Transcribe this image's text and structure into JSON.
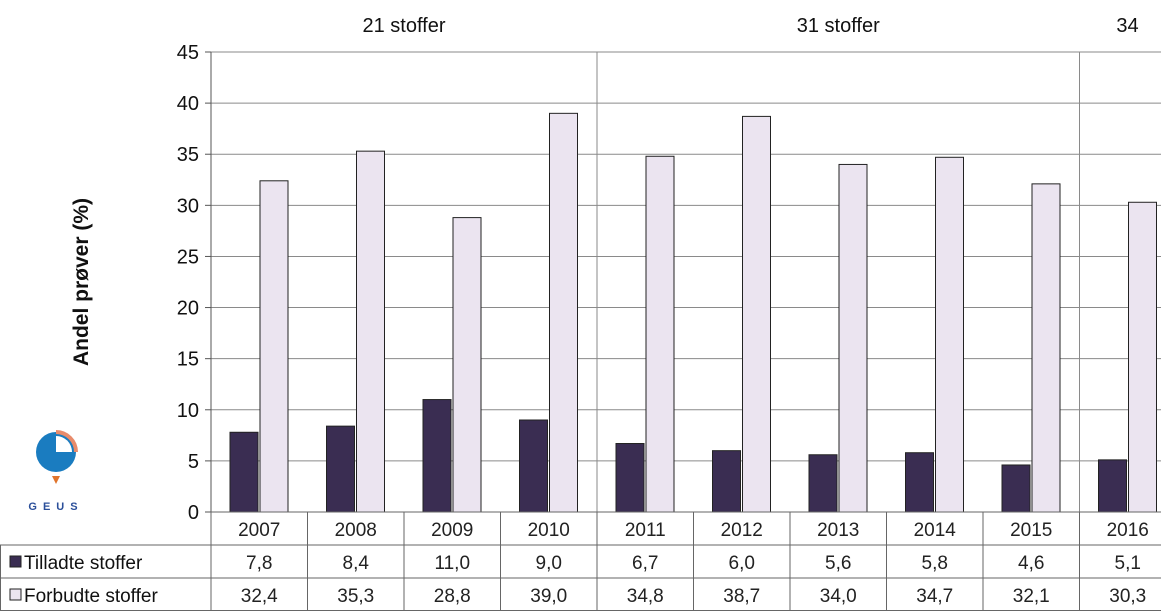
{
  "chart_data": {
    "type": "bar",
    "ylabel": "Andel prøver (%)",
    "ylim": [
      0,
      45
    ],
    "yticks": [
      0,
      5,
      10,
      15,
      20,
      25,
      30,
      35,
      40,
      45
    ],
    "grid": true,
    "categories": [
      "2007",
      "2008",
      "2009",
      "2010",
      "2011",
      "2012",
      "2013",
      "2014",
      "2015",
      "2016"
    ],
    "groups": [
      {
        "label": "21 stoffer",
        "from": 0,
        "to": 3
      },
      {
        "label": "31 stoffer",
        "from": 4,
        "to": 8
      },
      {
        "label": "34",
        "from": 9,
        "to": 9
      }
    ],
    "series": [
      {
        "name": "Tilladte stoffer",
        "color": "#3a2d52",
        "values": [
          7.8,
          8.4,
          11.0,
          9.0,
          6.7,
          6.0,
          5.6,
          5.8,
          4.6,
          5.1
        ],
        "labels": [
          "7,8",
          "8,4",
          "11,0",
          "9,0",
          "6,7",
          "6,0",
          "5,6",
          "5,8",
          "4,6",
          "5,1"
        ]
      },
      {
        "name": "Forbudte stoffer",
        "color": "#ebe4f0",
        "values": [
          32.4,
          35.3,
          28.8,
          39.0,
          34.8,
          38.7,
          34.0,
          34.7,
          32.1,
          30.3
        ],
        "labels": [
          "32,4",
          "35,3",
          "28,8",
          "39,0",
          "34,8",
          "38,7",
          "34,0",
          "34,7",
          "32,1",
          "30,3"
        ]
      }
    ],
    "table_below": true
  },
  "logo": {
    "text": "GEUS"
  }
}
